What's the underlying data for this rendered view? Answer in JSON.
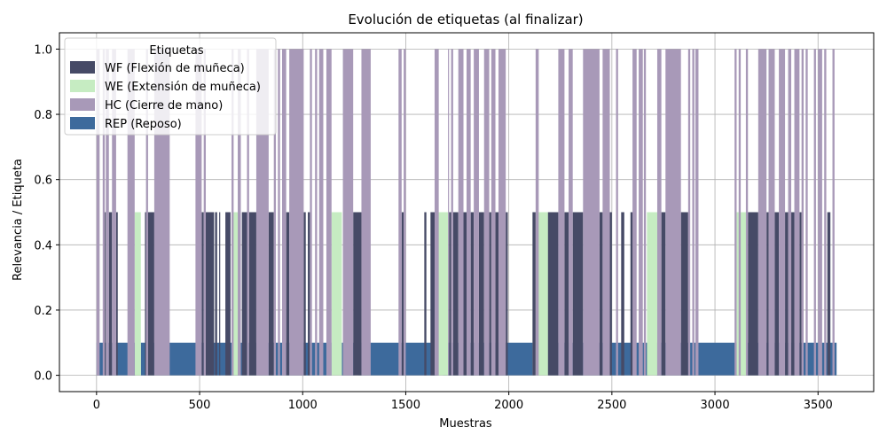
{
  "chart_data": {
    "type": "bar",
    "title": "Evolución de etiquetas (al finalizar)",
    "xlabel": "Muestras",
    "ylabel": "Relevancia / Etiqueta",
    "xlim": [
      -180,
      3770
    ],
    "ylim": [
      -0.05,
      1.05
    ],
    "xticks": [
      0,
      500,
      1000,
      1500,
      2000,
      2500,
      3000,
      3500
    ],
    "yticks": [
      0.0,
      0.2,
      0.4,
      0.6,
      0.8,
      1.0
    ],
    "grid": true,
    "legend_title": "Etiquetas",
    "legend_position": "upper-left",
    "series": [
      {
        "name": "REP (Reposo)",
        "color": "#3d6a9c",
        "value": 0.1,
        "ranges": [
          [
            0,
            190
          ],
          [
            215,
            1140
          ],
          [
            1190,
            1250
          ],
          [
            1270,
            1660
          ],
          [
            1680,
            2120
          ],
          [
            2195,
            2680
          ],
          [
            2715,
            3110
          ],
          [
            3150,
            3590
          ]
        ]
      },
      {
        "name": "WE (Extensión de muñeca)",
        "color": "#c6ecc2",
        "value": 0.5,
        "ranges": [
          [
            185,
            215
          ],
          [
            655,
            700
          ],
          [
            1140,
            1190
          ],
          [
            1655,
            1705
          ],
          [
            2115,
            2200
          ],
          [
            2670,
            2720
          ],
          [
            3105,
            3155
          ]
        ]
      },
      {
        "name": "WF (Flexión de muñeca)",
        "color": "#464a66",
        "value": 0.5,
        "ranges": [
          [
            40,
            45
          ],
          [
            60,
            75
          ],
          [
            95,
            103
          ],
          [
            235,
            280
          ],
          [
            510,
            520
          ],
          [
            530,
            570
          ],
          [
            575,
            585
          ],
          [
            595,
            600
          ],
          [
            625,
            650
          ],
          [
            705,
            730
          ],
          [
            740,
            775
          ],
          [
            835,
            860
          ],
          [
            920,
            935
          ],
          [
            1005,
            1015
          ],
          [
            1025,
            1035
          ],
          [
            1245,
            1285
          ],
          [
            1480,
            1490
          ],
          [
            1590,
            1600
          ],
          [
            1620,
            1650
          ],
          [
            1710,
            1720
          ],
          [
            1730,
            1755
          ],
          [
            1780,
            1795
          ],
          [
            1815,
            1830
          ],
          [
            1855,
            1880
          ],
          [
            1905,
            1915
          ],
          [
            1935,
            1950
          ],
          [
            1985,
            1995
          ],
          [
            2115,
            2130
          ],
          [
            2190,
            2240
          ],
          [
            2270,
            2290
          ],
          [
            2310,
            2360
          ],
          [
            2440,
            2455
          ],
          [
            2490,
            2500
          ],
          [
            2545,
            2560
          ],
          [
            2590,
            2605
          ],
          [
            2740,
            2760
          ],
          [
            2835,
            2870
          ],
          [
            3160,
            3210
          ],
          [
            3250,
            3260
          ],
          [
            3290,
            3310
          ],
          [
            3340,
            3355
          ],
          [
            3370,
            3385
          ],
          [
            3410,
            3420
          ],
          [
            3545,
            3560
          ]
        ]
      },
      {
        "name": "HC (Cierre de mano)",
        "color": "#a899b8",
        "value": 1.0,
        "ranges": [
          [
            0,
            15
          ],
          [
            30,
            40
          ],
          [
            45,
            60
          ],
          [
            75,
            95
          ],
          [
            150,
            185
          ],
          [
            240,
            250
          ],
          [
            280,
            355
          ],
          [
            480,
            510
          ],
          [
            520,
            530
          ],
          [
            655,
            665
          ],
          [
            685,
            700
          ],
          [
            730,
            740
          ],
          [
            775,
            835
          ],
          [
            860,
            870
          ],
          [
            880,
            890
          ],
          [
            900,
            920
          ],
          [
            935,
            1005
          ],
          [
            1035,
            1045
          ],
          [
            1060,
            1070
          ],
          [
            1080,
            1100
          ],
          [
            1115,
            1140
          ],
          [
            1195,
            1245
          ],
          [
            1285,
            1330
          ],
          [
            1465,
            1480
          ],
          [
            1490,
            1500
          ],
          [
            1640,
            1660
          ],
          [
            1705,
            1710
          ],
          [
            1720,
            1730
          ],
          [
            1755,
            1780
          ],
          [
            1795,
            1815
          ],
          [
            1830,
            1855
          ],
          [
            1880,
            1905
          ],
          [
            1915,
            1935
          ],
          [
            1950,
            1985
          ],
          [
            2130,
            2145
          ],
          [
            2240,
            2270
          ],
          [
            2290,
            2310
          ],
          [
            2360,
            2440
          ],
          [
            2455,
            2490
          ],
          [
            2520,
            2530
          ],
          [
            2600,
            2620
          ],
          [
            2630,
            2650
          ],
          [
            2655,
            2665
          ],
          [
            2720,
            2740
          ],
          [
            2760,
            2835
          ],
          [
            2870,
            2880
          ],
          [
            2890,
            2900
          ],
          [
            2905,
            2920
          ],
          [
            3095,
            3105
          ],
          [
            3115,
            3125
          ],
          [
            3150,
            3160
          ],
          [
            3210,
            3250
          ],
          [
            3260,
            3290
          ],
          [
            3310,
            3340
          ],
          [
            3355,
            3370
          ],
          [
            3385,
            3410
          ],
          [
            3420,
            3430
          ],
          [
            3440,
            3450
          ],
          [
            3480,
            3490
          ],
          [
            3500,
            3520
          ],
          [
            3530,
            3540
          ],
          [
            3570,
            3580
          ]
        ]
      }
    ],
    "legend_order": [
      "WF (Flexión de muñeca)",
      "WE (Extensión de muñeca)",
      "HC (Cierre de mano)",
      "REP (Reposo)"
    ]
  }
}
